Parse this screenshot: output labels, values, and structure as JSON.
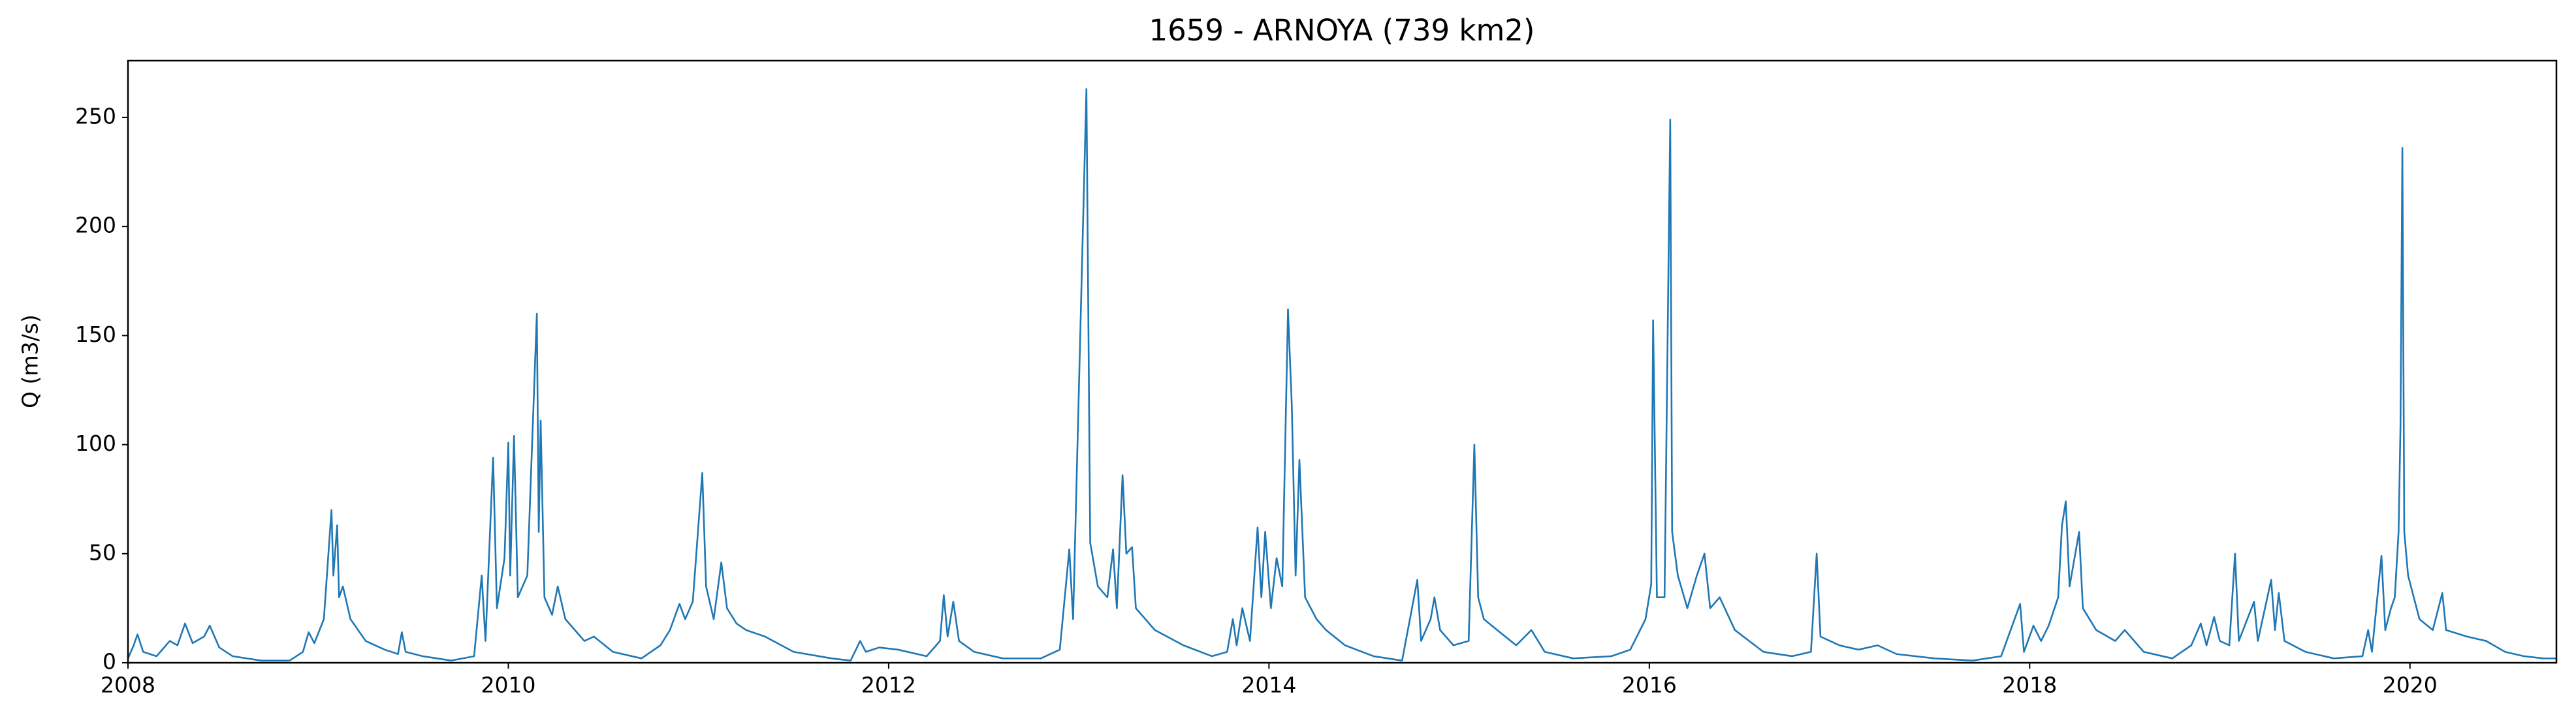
{
  "chart_data": {
    "type": "line",
    "title": "1659 - ARNOYA (739 km2)",
    "y_label": "Q (m3/s)",
    "x": [
      2008.0,
      2008.03,
      2008.05,
      2008.08,
      2008.15,
      2008.22,
      2008.26,
      2008.3,
      2008.34,
      2008.4,
      2008.43,
      2008.48,
      2008.55,
      2008.7,
      2008.85,
      2008.92,
      2008.95,
      2008.98,
      2009.03,
      2009.05,
      2009.07,
      2009.08,
      2009.1,
      2009.11,
      2009.13,
      2009.17,
      2009.25,
      2009.35,
      2009.42,
      2009.44,
      2009.46,
      2009.55,
      2009.7,
      2009.82,
      2009.86,
      2009.88,
      2009.92,
      2009.94,
      2009.98,
      2010.0,
      2010.01,
      2010.03,
      2010.05,
      2010.1,
      2010.15,
      2010.16,
      2010.17,
      2010.19,
      2010.23,
      2010.26,
      2010.3,
      2010.4,
      2010.45,
      2010.55,
      2010.7,
      2010.8,
      2010.85,
      2010.9,
      2010.93,
      2010.97,
      2011.02,
      2011.04,
      2011.08,
      2011.12,
      2011.15,
      2011.2,
      2011.25,
      2011.35,
      2011.5,
      2011.7,
      2011.8,
      2011.85,
      2011.88,
      2011.95,
      2012.05,
      2012.2,
      2012.27,
      2012.29,
      2012.31,
      2012.34,
      2012.37,
      2012.45,
      2012.6,
      2012.8,
      2012.9,
      2012.95,
      2012.97,
      2013.04,
      2013.06,
      2013.1,
      2013.15,
      2013.18,
      2013.2,
      2013.23,
      2013.25,
      2013.28,
      2013.3,
      2013.4,
      2013.55,
      2013.7,
      2013.78,
      2013.81,
      2013.83,
      2013.86,
      2013.9,
      2013.94,
      2013.96,
      2013.98,
      2014.01,
      2014.04,
      2014.07,
      2014.1,
      2014.12,
      2014.14,
      2014.16,
      2014.19,
      2014.25,
      2014.3,
      2014.4,
      2014.55,
      2014.7,
      2014.78,
      2014.8,
      2014.85,
      2014.87,
      2014.9,
      2014.97,
      2015.05,
      2015.08,
      2015.1,
      2015.13,
      2015.2,
      2015.3,
      2015.38,
      2015.45,
      2015.6,
      2015.8,
      2015.9,
      2015.98,
      2016.01,
      2016.02,
      2016.04,
      2016.08,
      2016.11,
      2016.12,
      2016.15,
      2016.2,
      2016.25,
      2016.29,
      2016.32,
      2016.37,
      2016.45,
      2016.6,
      2016.75,
      2016.85,
      2016.88,
      2016.9,
      2017.0,
      2017.1,
      2017.2,
      2017.3,
      2017.5,
      2017.7,
      2017.85,
      2017.95,
      2017.97,
      2018.02,
      2018.06,
      2018.1,
      2018.15,
      2018.17,
      2018.19,
      2018.21,
      2018.24,
      2018.26,
      2018.28,
      2018.35,
      2018.45,
      2018.5,
      2018.6,
      2018.75,
      2018.85,
      2018.9,
      2018.93,
      2018.97,
      2019.0,
      2019.05,
      2019.08,
      2019.1,
      2019.18,
      2019.2,
      2019.27,
      2019.29,
      2019.31,
      2019.34,
      2019.45,
      2019.6,
      2019.75,
      2019.78,
      2019.8,
      2019.85,
      2019.87,
      2019.9,
      2019.92,
      2019.94,
      2019.95,
      2019.96,
      2019.97,
      2019.99,
      2020.05,
      2020.12,
      2020.17,
      2020.19,
      2020.3,
      2020.4,
      2020.5,
      2020.6,
      2020.7,
      2020.77
    ],
    "series": [
      {
        "color": "#1f77b4",
        "values": [
          2,
          8,
          13,
          5,
          3,
          10,
          8,
          18,
          9,
          12,
          17,
          7,
          3,
          1,
          1,
          5,
          14,
          9,
          20,
          45,
          70,
          40,
          63,
          30,
          35,
          20,
          10,
          6,
          4,
          14,
          5,
          3,
          1,
          3,
          40,
          10,
          94,
          25,
          48,
          101,
          40,
          104,
          30,
          40,
          160,
          60,
          111,
          30,
          22,
          35,
          20,
          10,
          12,
          5,
          2,
          8,
          15,
          27,
          20,
          28,
          87,
          35,
          20,
          46,
          25,
          18,
          15,
          12,
          5,
          2,
          1,
          10,
          5,
          7,
          6,
          3,
          10,
          31,
          12,
          28,
          10,
          5,
          2,
          2,
          6,
          52,
          20,
          263,
          55,
          35,
          30,
          52,
          25,
          86,
          50,
          53,
          25,
          15,
          8,
          3,
          5,
          20,
          8,
          25,
          10,
          62,
          30,
          60,
          25,
          48,
          35,
          162,
          118,
          40,
          93,
          30,
          20,
          15,
          8,
          3,
          1,
          38,
          10,
          20,
          30,
          15,
          8,
          10,
          100,
          30,
          20,
          15,
          8,
          15,
          5,
          2,
          3,
          6,
          20,
          36,
          157,
          30,
          30,
          249,
          60,
          40,
          25,
          40,
          50,
          25,
          30,
          15,
          5,
          3,
          5,
          50,
          12,
          8,
          6,
          8,
          4,
          2,
          1,
          3,
          27,
          5,
          17,
          10,
          17,
          30,
          63,
          74,
          35,
          50,
          60,
          25,
          15,
          10,
          15,
          5,
          2,
          8,
          18,
          8,
          21,
          10,
          8,
          50,
          10,
          28,
          10,
          38,
          15,
          32,
          10,
          5,
          2,
          3,
          15,
          5,
          49,
          15,
          25,
          30,
          60,
          108,
          236,
          60,
          40,
          20,
          15,
          32,
          15,
          12,
          10,
          5,
          3,
          2,
          2
        ]
      }
    ],
    "xlim": [
      2008,
      2020.77
    ],
    "xticks": [
      2008,
      2010,
      2012,
      2014,
      2016,
      2018,
      2020
    ],
    "ylim": [
      0,
      276
    ],
    "yticks": [
      0,
      50,
      100,
      150,
      200,
      250
    ]
  }
}
